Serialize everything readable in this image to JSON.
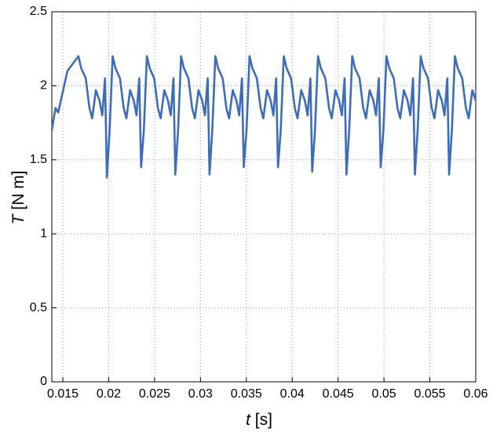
{
  "chart_data": {
    "type": "line",
    "xlabel_var": "t",
    "xlabel_unit": "[s]",
    "ylabel_var": "T",
    "ylabel_unit": "[N m]",
    "xlim": [
      0.0138,
      0.06
    ],
    "ylim": [
      0,
      2.5
    ],
    "xticks": [
      0.015,
      0.02,
      0.025,
      0.03,
      0.035,
      0.04,
      0.045,
      0.05,
      0.055,
      0.06
    ],
    "yticks": [
      0,
      0.5,
      1,
      1.5,
      2,
      2.5
    ],
    "grid": true,
    "series": [
      {
        "color": "#3d6cb9",
        "x": [
          0.0138,
          0.0142,
          0.0145,
          0.0155,
          0.0167,
          0.017,
          0.0175,
          0.0179,
          0.0182,
          0.0186,
          0.019,
          0.0193,
          0.0196,
          0.0198,
          0.0201,
          0.02043,
          0.02073,
          0.02123,
          0.02163,
          0.02193,
          0.02233,
          0.02273,
          0.02303,
          0.02333,
          0.02353,
          0.02383,
          0.02416,
          0.02446,
          0.02496,
          0.02536,
          0.02566,
          0.02606,
          0.02646,
          0.02676,
          0.02706,
          0.02726,
          0.02756,
          0.02789,
          0.02819,
          0.02869,
          0.02909,
          0.02939,
          0.02979,
          0.03019,
          0.03049,
          0.03079,
          0.03099,
          0.03129,
          0.03162,
          0.03192,
          0.03242,
          0.03282,
          0.03312,
          0.03352,
          0.03392,
          0.03422,
          0.03452,
          0.03472,
          0.03502,
          0.03535,
          0.03565,
          0.03615,
          0.03655,
          0.03685,
          0.03725,
          0.03765,
          0.03795,
          0.03825,
          0.03845,
          0.03875,
          0.03908,
          0.03938,
          0.03988,
          0.04028,
          0.04058,
          0.04098,
          0.04138,
          0.04168,
          0.04198,
          0.04218,
          0.04248,
          0.04281,
          0.04311,
          0.04361,
          0.04401,
          0.04431,
          0.04471,
          0.04511,
          0.04541,
          0.04571,
          0.04591,
          0.04621,
          0.04654,
          0.04684,
          0.04734,
          0.04774,
          0.04804,
          0.04844,
          0.04884,
          0.04914,
          0.04944,
          0.04964,
          0.04994,
          0.05027,
          0.05057,
          0.05107,
          0.05147,
          0.05177,
          0.05217,
          0.05257,
          0.05287,
          0.05317,
          0.05337,
          0.05367,
          0.054,
          0.0543,
          0.0548,
          0.0552,
          0.0555,
          0.0559,
          0.0563,
          0.0566,
          0.0569,
          0.0571,
          0.0574,
          0.05773,
          0.05803,
          0.05853,
          0.05893,
          0.05923,
          0.05963,
          0.06
        ],
        "values": [
          1.7,
          1.85,
          1.82,
          2.1,
          2.2,
          2.12,
          2.05,
          1.85,
          1.78,
          1.97,
          1.9,
          1.8,
          2.05,
          1.38,
          1.7,
          2.2,
          2.12,
          2.05,
          1.85,
          1.78,
          1.97,
          1.9,
          1.8,
          2.05,
          1.45,
          1.7,
          2.2,
          2.12,
          2.05,
          1.85,
          1.78,
          1.97,
          1.9,
          1.8,
          2.05,
          1.4,
          1.7,
          2.2,
          2.12,
          2.05,
          1.85,
          1.78,
          1.97,
          1.9,
          1.8,
          2.05,
          1.4,
          1.7,
          2.2,
          2.12,
          2.05,
          1.85,
          1.78,
          1.97,
          1.9,
          1.8,
          2.05,
          1.45,
          1.7,
          2.2,
          2.12,
          2.05,
          1.85,
          1.78,
          1.97,
          1.9,
          1.8,
          2.05,
          1.45,
          1.7,
          2.2,
          2.12,
          2.05,
          1.85,
          1.78,
          1.97,
          1.9,
          1.8,
          2.05,
          1.42,
          1.7,
          2.2,
          2.12,
          2.05,
          1.85,
          1.78,
          1.97,
          1.9,
          1.8,
          2.05,
          1.4,
          1.7,
          2.2,
          2.12,
          2.05,
          1.85,
          1.78,
          1.97,
          1.9,
          1.8,
          2.05,
          1.45,
          1.7,
          2.2,
          2.12,
          2.05,
          1.85,
          1.78,
          1.97,
          1.9,
          1.8,
          2.05,
          1.4,
          1.7,
          2.2,
          2.12,
          2.05,
          1.85,
          1.78,
          1.97,
          1.9,
          1.8,
          2.05,
          1.4,
          1.7,
          2.2,
          2.12,
          2.05,
          1.85,
          1.78,
          1.97,
          1.9
        ]
      }
    ]
  }
}
